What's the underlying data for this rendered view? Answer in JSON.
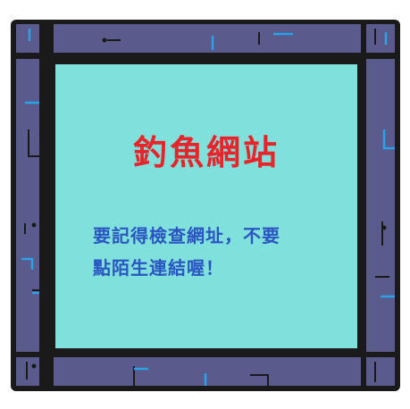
{
  "comic_panel": {
    "headline": "釣魚網站",
    "body_lines": [
      "要記得檢查網址，不要",
      "點陌生連結喔！"
    ]
  },
  "colors": {
    "frame_fill": "#5a5a8c",
    "frame_outline": "#1a1a1a",
    "panel_fill": "#7fe0dc",
    "accent_line": "#2aa3e6",
    "headline_color": "#e8242b",
    "body_color": "#2b55c0"
  }
}
